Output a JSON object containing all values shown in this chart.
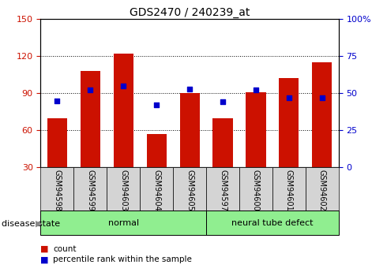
{
  "title": "GDS2470 / 240239_at",
  "categories": [
    "GSM94598",
    "GSM94599",
    "GSM94603",
    "GSM94604",
    "GSM94605",
    "GSM94597",
    "GSM94600",
    "GSM94601",
    "GSM94602"
  ],
  "bar_values": [
    70,
    108,
    122,
    57,
    90,
    70,
    91,
    102,
    115
  ],
  "percentile_values": [
    45,
    52,
    55,
    42,
    53,
    44,
    52,
    47,
    47
  ],
  "bar_color": "#CC1100",
  "dot_color": "#0000CC",
  "ylim_left": [
    30,
    150
  ],
  "ylim_right": [
    0,
    100
  ],
  "yticks_left": [
    30,
    60,
    90,
    120,
    150
  ],
  "yticks_right": [
    0,
    25,
    50,
    75,
    100
  ],
  "yticklabels_right": [
    "0",
    "25",
    "50",
    "75",
    "100%"
  ],
  "left_axis_color": "#CC1100",
  "right_axis_color": "#0000CC",
  "groups": [
    {
      "label": "normal",
      "start": 0,
      "end": 5
    },
    {
      "label": "neural tube defect",
      "start": 5,
      "end": 9
    }
  ],
  "group_color": "#90EE90",
  "disease_state_label": "disease state",
  "legend_items": [
    {
      "label": "count",
      "color": "#CC1100"
    },
    {
      "label": "percentile rank within the sample",
      "color": "#0000CC"
    }
  ],
  "bar_width": 0.6,
  "background_color": "#ffffff",
  "ticklabel_bg": "#d0d0d0"
}
